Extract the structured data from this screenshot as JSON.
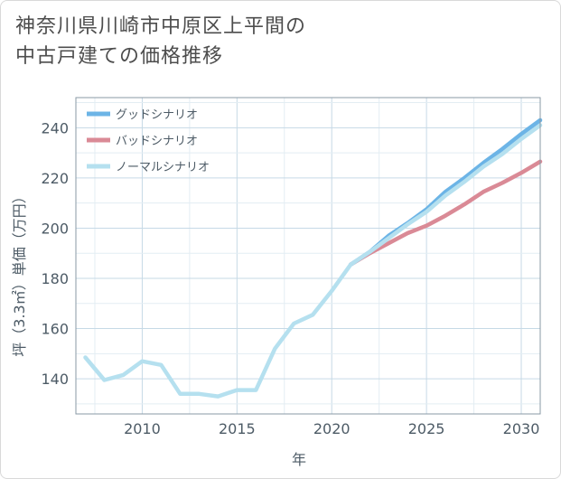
{
  "title_lines": [
    "神奈川県川崎市中原区上平間の",
    "中古戸建ての価格推移"
  ],
  "chart_data": {
    "type": "line",
    "title": "神奈川県川崎市中原区上平間の中古戸建ての価格推移",
    "xlabel": "年",
    "ylabel": "坪（3.3㎡）単価（万円）",
    "xlim": [
      2006.5,
      2031
    ],
    "ylim": [
      126,
      252
    ],
    "xticks": [
      2010,
      2015,
      2020,
      2025,
      2030
    ],
    "yticks": [
      140,
      160,
      180,
      200,
      220,
      240
    ],
    "xgrid_step": 2.5,
    "ygrid_step": 10,
    "legend_position": "top-left",
    "series": [
      {
        "name": "グッドシナリオ",
        "color": "#6cb4e6",
        "x": [
          2021,
          2022,
          2023,
          2024,
          2025,
          2026,
          2027,
          2028,
          2029,
          2030,
          2031
        ],
        "values": [
          185.5,
          190.5,
          197.0,
          202.0,
          207.5,
          214.5,
          220.0,
          226.0,
          231.5,
          237.5,
          243.0
        ]
      },
      {
        "name": "バッドシナリオ",
        "color": "#da8a96",
        "x": [
          2021,
          2022,
          2023,
          2024,
          2025,
          2026,
          2027,
          2028,
          2029,
          2030,
          2031
        ],
        "values": [
          185.5,
          190.0,
          194.0,
          198.0,
          201.0,
          205.0,
          209.5,
          214.5,
          218.0,
          222.0,
          226.5
        ]
      },
      {
        "name": "ノーマルシナリオ",
        "color": "#b5e0ef",
        "x": [
          2007,
          2008,
          2009,
          2010,
          2011,
          2012,
          2013,
          2014,
          2015,
          2016,
          2017,
          2018,
          2019,
          2020,
          2021,
          2022,
          2023,
          2024,
          2025,
          2026,
          2027,
          2028,
          2029,
          2030,
          2031
        ],
        "values": [
          148.5,
          139.5,
          141.5,
          147.0,
          145.5,
          134.0,
          134.0,
          133.0,
          135.5,
          135.5,
          152.0,
          162.0,
          165.5,
          175.0,
          185.5,
          190.5,
          196.0,
          201.5,
          206.5,
          213.0,
          218.5,
          224.5,
          229.5,
          235.5,
          241.0
        ]
      }
    ]
  }
}
